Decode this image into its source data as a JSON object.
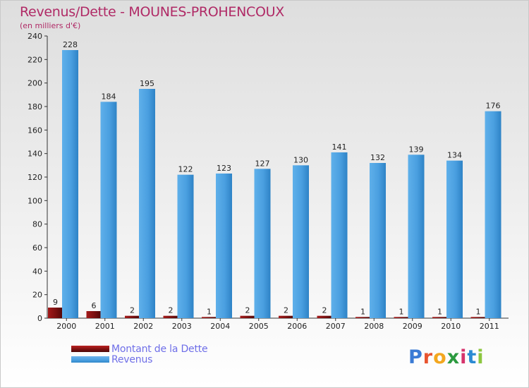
{
  "title": "Revenus/Dette - MOUNES-PROHENCOUX",
  "subtitle": "(en milliers d'€)",
  "logo": {
    "text": "Proxiti",
    "letters": [
      "P",
      "r",
      "o",
      "x",
      "i",
      "t",
      "i"
    ],
    "colors": [
      "#3a7bd5",
      "#e8542f",
      "#f3a71f",
      "#2c9a3f",
      "#d6336c",
      "#2b8ad3",
      "#8cc63f"
    ]
  },
  "legend": [
    {
      "label": "Montant de la Dette",
      "color": "#7a1010"
    },
    {
      "label": "Revenus",
      "color": "#4a9fe0"
    }
  ],
  "chart_data": {
    "type": "bar",
    "title": "Revenus/Dette - MOUNES-PROHENCOUX",
    "ylabel": "(en milliers d'€)",
    "categories": [
      "2000",
      "2001",
      "2002",
      "2003",
      "2004",
      "2005",
      "2006",
      "2007",
      "2008",
      "2009",
      "2010",
      "2011"
    ],
    "series": [
      {
        "name": "Montant de la Dette",
        "color": "#7a1010",
        "values": [
          9,
          6,
          2,
          2,
          1,
          2,
          2,
          2,
          1,
          1,
          1,
          1
        ]
      },
      {
        "name": "Revenus",
        "color": "#4a9fe0",
        "values": [
          228,
          184,
          195,
          122,
          123,
          127,
          130,
          141,
          132,
          139,
          134,
          176
        ]
      }
    ],
    "ylim": [
      0,
      240
    ],
    "yticks": [
      0,
      20,
      40,
      60,
      80,
      100,
      120,
      140,
      160,
      180,
      200,
      220,
      240
    ],
    "grid": false
  }
}
